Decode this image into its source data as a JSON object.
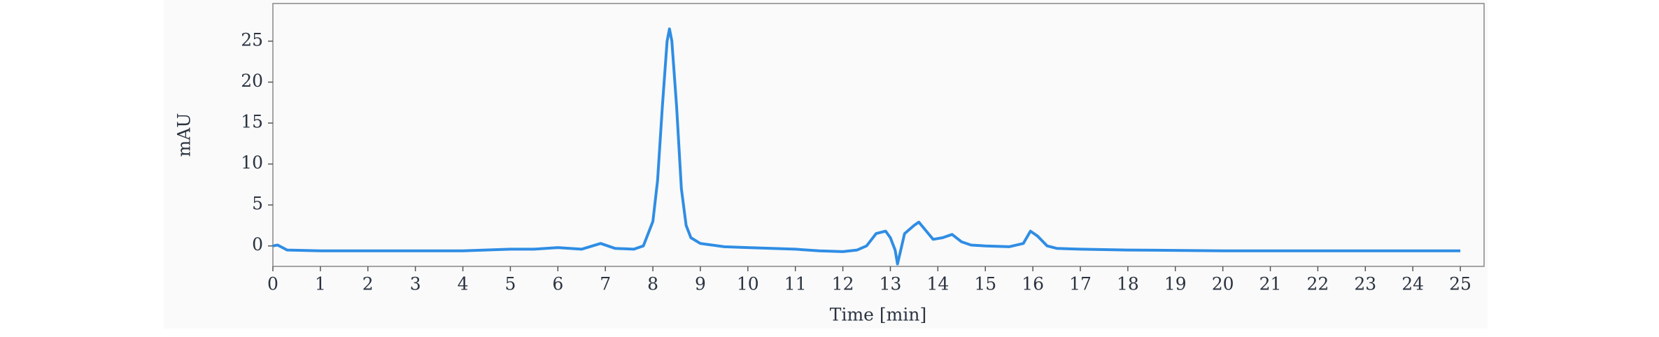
{
  "chart_data": {
    "type": "line",
    "xlabel": "Time [min]",
    "ylabel": "mAU",
    "x": [
      0,
      0.1,
      0.3,
      1,
      2,
      3,
      4,
      5,
      5.5,
      6,
      6.5,
      6.9,
      7.2,
      7.6,
      7.8,
      8.0,
      8.1,
      8.2,
      8.3,
      8.35,
      8.4,
      8.5,
      8.6,
      8.7,
      8.8,
      9,
      9.5,
      10,
      11,
      11.5,
      12,
      12.3,
      12.5,
      12.7,
      12.9,
      13.0,
      13.1,
      13.15,
      13.2,
      13.3,
      13.5,
      13.6,
      13.8,
      13.9,
      14.1,
      14.3,
      14.5,
      14.7,
      15,
      15.5,
      15.8,
      15.95,
      16.1,
      16.3,
      16.5,
      17,
      18,
      20,
      22,
      25
    ],
    "values": [
      0.0,
      0.1,
      -0.5,
      -0.6,
      -0.6,
      -0.6,
      -0.6,
      -0.4,
      -0.4,
      -0.2,
      -0.4,
      0.3,
      -0.3,
      -0.4,
      0,
      3,
      8,
      17,
      25,
      26.5,
      25,
      17,
      7,
      2.5,
      1,
      0.3,
      -0.1,
      -0.2,
      -0.4,
      -0.6,
      -0.7,
      -0.5,
      0,
      1.5,
      1.8,
      1.0,
      -0.5,
      -2.2,
      -1,
      1.5,
      2.5,
      2.9,
      1.5,
      0.8,
      1.0,
      1.4,
      0.5,
      0.1,
      0,
      -0.1,
      0.3,
      1.8,
      1.2,
      0,
      -0.3,
      -0.4,
      -0.5,
      -0.6,
      -0.6,
      -0.6
    ],
    "color": "#2f8de4",
    "xlim": [
      0,
      25.5
    ],
    "ylim": [
      -2.5,
      29.6
    ],
    "xticks": [
      0,
      1,
      2,
      3,
      4,
      5,
      6,
      7,
      8,
      9,
      10,
      11,
      12,
      13,
      14,
      15,
      16,
      17,
      18,
      19,
      20,
      21,
      22,
      23,
      24,
      25
    ],
    "yticks": [
      0,
      5,
      10,
      15,
      20,
      25
    ]
  }
}
